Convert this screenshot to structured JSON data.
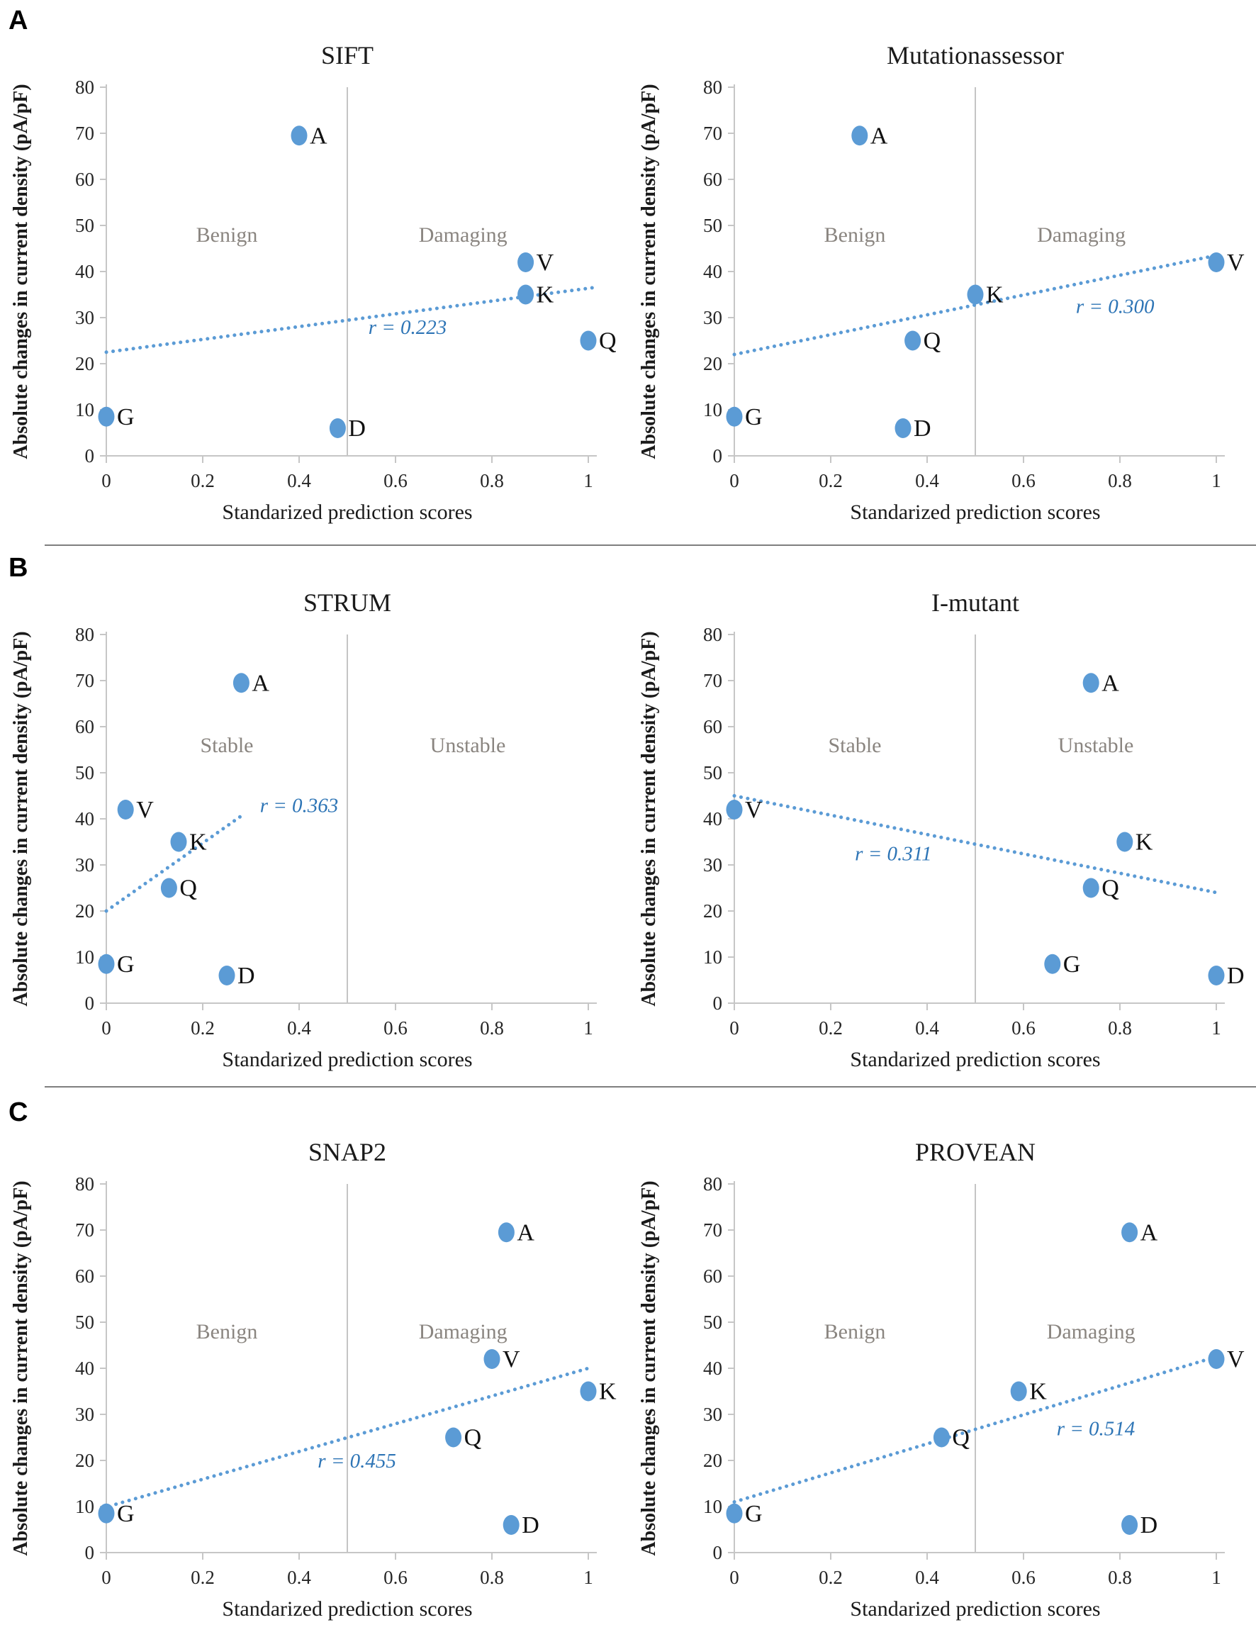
{
  "figure": {
    "panel_labels": [
      "A",
      "B",
      "C"
    ],
    "shared_xlabel": "Standarized prediction scores",
    "shared_ylabel": "Absolute changes in current density (pA/pF)"
  },
  "colors": {
    "marker": "#5b9bd5",
    "trend": "#5b9bd5",
    "r_text": "#2e75b6",
    "region_text": "#8a8580",
    "axis": "#c6c6c6",
    "threshold": "#b0b0b0",
    "text": "#1a1a1a",
    "separator": "#7f7f7f"
  },
  "chart_data": [
    {
      "type": "scatter",
      "panel": "A",
      "title": "SIFT",
      "xlabel": "Standarized prediction scores",
      "ylabel": "Absolute changes in current density (pA/pF)",
      "xlim": [
        0,
        1
      ],
      "ylim": [
        0,
        80
      ],
      "xticks": [
        0,
        0.2,
        0.4,
        0.6,
        0.8,
        1
      ],
      "yticks": [
        0,
        10,
        20,
        30,
        40,
        50,
        60,
        70,
        80
      ],
      "threshold_x": 0.5,
      "regions": [
        {
          "text": "Benign",
          "x": 0.25,
          "y": 46.5
        },
        {
          "text": "Damaging",
          "x": 0.74,
          "y": 46.5
        }
      ],
      "points": [
        {
          "label": "G",
          "x": 0.0,
          "y": 8.5
        },
        {
          "label": "A",
          "x": 0.4,
          "y": 69.5
        },
        {
          "label": "D",
          "x": 0.48,
          "y": 6
        },
        {
          "label": "V",
          "x": 0.87,
          "y": 42
        },
        {
          "label": "K",
          "x": 0.87,
          "y": 35
        },
        {
          "label": "Q",
          "x": 1.0,
          "y": 25
        }
      ],
      "trend": {
        "x1": 0,
        "y1": 22.5,
        "x2": 1.01,
        "y2": 36.5
      },
      "r_label": {
        "text": "r = 0.223",
        "x": 0.625,
        "y": 26.5
      }
    },
    {
      "type": "scatter",
      "panel": "A",
      "title": "Mutationassessor",
      "xlabel": "Standarized prediction scores",
      "ylabel": "Absolute changes in current density (pA/pF)",
      "xlim": [
        0,
        1
      ],
      "ylim": [
        0,
        80
      ],
      "xticks": [
        0,
        0.2,
        0.4,
        0.6,
        0.8,
        1
      ],
      "yticks": [
        0,
        10,
        20,
        30,
        40,
        50,
        60,
        70,
        80
      ],
      "threshold_x": 0.5,
      "regions": [
        {
          "text": "Benign",
          "x": 0.25,
          "y": 46.5
        },
        {
          "text": "Damaging",
          "x": 0.72,
          "y": 46.5
        }
      ],
      "points": [
        {
          "label": "G",
          "x": 0.0,
          "y": 8.5
        },
        {
          "label": "A",
          "x": 0.26,
          "y": 69.5
        },
        {
          "label": "D",
          "x": 0.35,
          "y": 6
        },
        {
          "label": "Q",
          "x": 0.37,
          "y": 25
        },
        {
          "label": "K",
          "x": 0.5,
          "y": 35
        },
        {
          "label": "V",
          "x": 1.0,
          "y": 42
        }
      ],
      "trend": {
        "x1": 0,
        "y1": 22,
        "x2": 1.0,
        "y2": 43.5
      },
      "r_label": {
        "text": "r = 0.300",
        "x": 0.79,
        "y": 31
      }
    },
    {
      "type": "scatter",
      "panel": "B",
      "title": "STRUM",
      "xlabel": "Standarized prediction scores",
      "ylabel": "Absolute changes in current density (pA/pF)",
      "xlim": [
        0,
        1
      ],
      "ylim": [
        0,
        80
      ],
      "xticks": [
        0,
        0.2,
        0.4,
        0.6,
        0.8,
        1
      ],
      "yticks": [
        0,
        10,
        20,
        30,
        40,
        50,
        60,
        70,
        80
      ],
      "threshold_x": 0.5,
      "regions": [
        {
          "text": "Stable",
          "x": 0.25,
          "y": 54.5
        },
        {
          "text": "Unstable",
          "x": 0.75,
          "y": 54.5
        }
      ],
      "points": [
        {
          "label": "G",
          "x": 0.0,
          "y": 8.5
        },
        {
          "label": "V",
          "x": 0.04,
          "y": 42
        },
        {
          "label": "Q",
          "x": 0.13,
          "y": 25
        },
        {
          "label": "K",
          "x": 0.15,
          "y": 35
        },
        {
          "label": "D",
          "x": 0.25,
          "y": 6
        },
        {
          "label": "A",
          "x": 0.28,
          "y": 69.5
        }
      ],
      "trend": {
        "x1": 0,
        "y1": 20,
        "x2": 0.285,
        "y2": 41
      },
      "r_label": {
        "text": "r = 0.363",
        "x": 0.4,
        "y": 41.5
      }
    },
    {
      "type": "scatter",
      "panel": "B",
      "title": "I-mutant",
      "xlabel": "Standarized prediction scores",
      "ylabel": "Absolute changes in current density (pA/pF)",
      "xlim": [
        0,
        1
      ],
      "ylim": [
        0,
        80
      ],
      "xticks": [
        0,
        0.2,
        0.4,
        0.6,
        0.8,
        1
      ],
      "yticks": [
        0,
        10,
        20,
        30,
        40,
        50,
        60,
        70,
        80
      ],
      "threshold_x": 0.5,
      "regions": [
        {
          "text": "Stable",
          "x": 0.25,
          "y": 54.5
        },
        {
          "text": "Unstable",
          "x": 0.75,
          "y": 54.5
        }
      ],
      "points": [
        {
          "label": "V",
          "x": 0.0,
          "y": 42
        },
        {
          "label": "G",
          "x": 0.66,
          "y": 8.5
        },
        {
          "label": "Q",
          "x": 0.74,
          "y": 25
        },
        {
          "label": "A",
          "x": 0.74,
          "y": 69.5
        },
        {
          "label": "K",
          "x": 0.81,
          "y": 35
        },
        {
          "label": "D",
          "x": 1.0,
          "y": 6
        }
      ],
      "trend": {
        "x1": 0,
        "y1": 45,
        "x2": 1.0,
        "y2": 24
      },
      "r_label": {
        "text": "r = 0.311",
        "x": 0.33,
        "y": 31
      }
    },
    {
      "type": "scatter",
      "panel": "C",
      "title": "SNAP2",
      "xlabel": "Standarized prediction scores",
      "ylabel": "Absolute changes in current density (pA/pF)",
      "xlim": [
        0,
        1
      ],
      "ylim": [
        0,
        80
      ],
      "xticks": [
        0,
        0.2,
        0.4,
        0.6,
        0.8,
        1
      ],
      "yticks": [
        0,
        10,
        20,
        30,
        40,
        50,
        60,
        70,
        80
      ],
      "threshold_x": 0.5,
      "regions": [
        {
          "text": "Benign",
          "x": 0.25,
          "y": 46.5
        },
        {
          "text": "Damaging",
          "x": 0.74,
          "y": 46.5
        }
      ],
      "points": [
        {
          "label": "G",
          "x": 0.0,
          "y": 8.5
        },
        {
          "label": "Q",
          "x": 0.72,
          "y": 25
        },
        {
          "label": "V",
          "x": 0.8,
          "y": 42
        },
        {
          "label": "A",
          "x": 0.83,
          "y": 69.5
        },
        {
          "label": "D",
          "x": 0.84,
          "y": 6
        },
        {
          "label": "K",
          "x": 1.0,
          "y": 35
        }
      ],
      "trend": {
        "x1": 0.02,
        "y1": 10.5,
        "x2": 1.0,
        "y2": 40
      },
      "r_label": {
        "text": "r = 0.455",
        "x": 0.52,
        "y": 18.5
      }
    },
    {
      "type": "scatter",
      "panel": "C",
      "title": "PROVEAN",
      "xlabel": "Standarized prediction scores",
      "ylabel": "Absolute changes in current density (pA/pF)",
      "xlim": [
        0,
        1
      ],
      "ylim": [
        0,
        80
      ],
      "xticks": [
        0,
        0.2,
        0.4,
        0.6,
        0.8,
        1
      ],
      "yticks": [
        0,
        10,
        20,
        30,
        40,
        50,
        60,
        70,
        80
      ],
      "threshold_x": 0.5,
      "regions": [
        {
          "text": "Benign",
          "x": 0.25,
          "y": 46.5
        },
        {
          "text": "Damaging",
          "x": 0.74,
          "y": 46.5
        }
      ],
      "points": [
        {
          "label": "G",
          "x": 0.0,
          "y": 8.5
        },
        {
          "label": "Q",
          "x": 0.43,
          "y": 25
        },
        {
          "label": "K",
          "x": 0.59,
          "y": 35
        },
        {
          "label": "D",
          "x": 0.82,
          "y": 6
        },
        {
          "label": "A",
          "x": 0.82,
          "y": 69.5
        },
        {
          "label": "V",
          "x": 1.0,
          "y": 42
        }
      ],
      "trend": {
        "x1": 0,
        "y1": 11,
        "x2": 1.0,
        "y2": 42.5
      },
      "r_label": {
        "text": "r = 0.514",
        "x": 0.75,
        "y": 25.5
      }
    }
  ]
}
